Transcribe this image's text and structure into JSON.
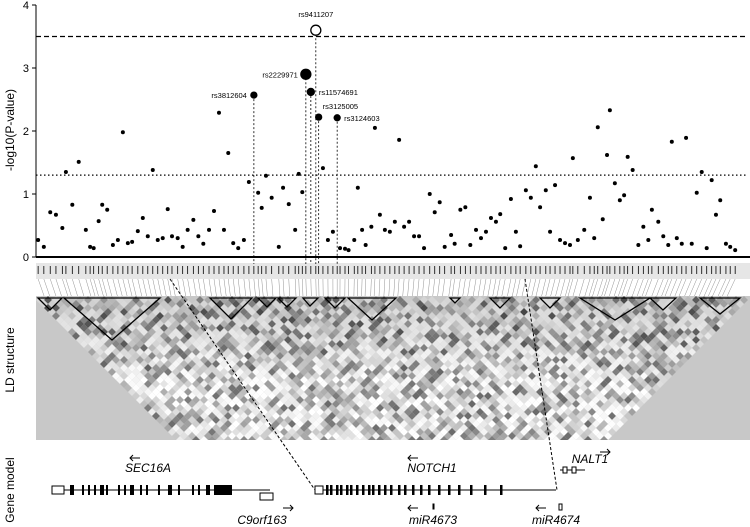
{
  "chart_data": {
    "type": "scatter",
    "y_label": "-log10(P-value)",
    "xlim": [
      0,
      100
    ],
    "ylim": [
      0,
      4
    ],
    "yticks": [
      0,
      1,
      2,
      3,
      4
    ],
    "color": "#000000",
    "hlines": [
      {
        "value": 3.5,
        "style": "dashed"
      },
      {
        "value": 1.3,
        "style": "dotted"
      }
    ],
    "series": [
      {
        "x": [
          0.3,
          1.1,
          2.0,
          2.8,
          3.7,
          4.2,
          5.1,
          6.0,
          7.0,
          7.6,
          8.1,
          8.8,
          9.3,
          10.0,
          10.8,
          11.5,
          12.2,
          12.9,
          13.5,
          14.3,
          15.0,
          15.7,
          16.4,
          17.1,
          17.8,
          18.5,
          19.1,
          19.9,
          20.6,
          21.3,
          22.1,
          22.8,
          23.5,
          24.3,
          25.0,
          25.7,
          26.4,
          27.0,
          27.7,
          28.4,
          29.2,
          29.9,
          31.2,
          31.7,
          32.3,
          33.1,
          34.1,
          34.7,
          35.5,
          36.4,
          36.9,
          37.4,
          40.3,
          41.0,
          41.7,
          42.7,
          43.4,
          43.9,
          44.7,
          45.2,
          45.8,
          46.3,
          47.1,
          47.6,
          48.3,
          49.0,
          49.7,
          50.4,
          51.0,
          51.7,
          52.4,
          53.1,
          53.8,
          54.5,
          55.3,
          56.0,
          56.7,
          57.4,
          58.3,
          58.8,
          59.6,
          60.3,
          61.0,
          61.8,
          62.5,
          63.2,
          63.9,
          64.6,
          65.2,
          65.9,
          66.7,
          67.4,
          68.0,
          68.8,
          69.5,
          70.2,
          70.8,
          71.6,
          72.2,
          72.9,
          73.6,
          74.3,
          75.0,
          75.4,
          76.1,
          77.0,
          77.8,
          78.4,
          78.9,
          79.6,
          80.2,
          80.6,
          81.3,
          82.0,
          82.6,
          83.1,
          83.8,
          84.6,
          85.3,
          86.0,
          86.5,
          87.4,
          88.1,
          88.8,
          89.3,
          90.0,
          90.7,
          91.3,
          92.1,
          92.8,
          93.5,
          94.2,
          94.9,
          95.5,
          96.1,
          96.9,
          97.5,
          98.2
        ],
        "values": [
          0.27,
          0.16,
          0.71,
          0.67,
          0.46,
          1.35,
          0.83,
          1.51,
          0.43,
          0.16,
          0.14,
          0.57,
          0.83,
          0.75,
          0.19,
          0.27,
          1.98,
          0.22,
          0.24,
          0.41,
          0.62,
          0.33,
          1.38,
          0.27,
          0.3,
          0.76,
          0.33,
          0.3,
          0.16,
          0.43,
          0.59,
          0.33,
          0.21,
          0.43,
          0.73,
          2.29,
          0.43,
          1.65,
          0.22,
          0.14,
          0.27,
          1.19,
          1.02,
          0.78,
          1.29,
          0.94,
          0.16,
          1.1,
          0.84,
          0.43,
          1.32,
          1.03,
          1.41,
          0.27,
          0.4,
          0.14,
          0.13,
          0.11,
          0.27,
          1.1,
          0.43,
          0.19,
          0.48,
          2.05,
          0.67,
          0.43,
          0.4,
          0.56,
          1.86,
          0.48,
          0.56,
          0.33,
          0.33,
          0.14,
          1.0,
          0.71,
          0.87,
          0.16,
          0.35,
          0.21,
          0.75,
          0.79,
          0.19,
          0.43,
          0.3,
          0.4,
          0.62,
          0.56,
          0.68,
          0.14,
          0.92,
          0.4,
          0.17,
          1.06,
          0.94,
          1.44,
          0.79,
          1.06,
          0.4,
          1.14,
          0.27,
          0.22,
          0.19,
          1.57,
          0.27,
          0.43,
          0.94,
          0.3,
          2.06,
          0.6,
          1.62,
          2.33,
          1.17,
          0.9,
          0.98,
          1.59,
          1.38,
          0.19,
          0.48,
          0.27,
          0.75,
          0.56,
          0.33,
          0.19,
          1.83,
          0.3,
          0.21,
          1.89,
          0.21,
          1.02,
          1.35,
          0.14,
          1.22,
          0.67,
          0.9,
          0.21,
          0.16,
          0.11
        ]
      }
    ],
    "annotations": [
      {
        "label": "rs9411207",
        "x": 39.3,
        "y": 3.6,
        "marker": "open"
      },
      {
        "label": "rs2229971",
        "x": 37.9,
        "y": 2.9,
        "marker": "filled"
      },
      {
        "label": "rs11574691",
        "x": 38.6,
        "y": 2.62,
        "marker": "filled"
      },
      {
        "label": "rs3125005",
        "x": 39.7,
        "y": 2.22,
        "marker": "filled"
      },
      {
        "label": "rs3124603",
        "x": 42.3,
        "y": 2.21,
        "marker": "filled"
      },
      {
        "label": "rs3812604",
        "x": 30.6,
        "y": 2.57,
        "marker": "filled"
      }
    ]
  },
  "panels": {
    "ld_label": "LD structure",
    "gene_label": "Gene model"
  },
  "genes": [
    "SEC16A",
    "NOTCH1",
    "NALT1",
    "C9orf163",
    "miR4673",
    "miR4674"
  ]
}
